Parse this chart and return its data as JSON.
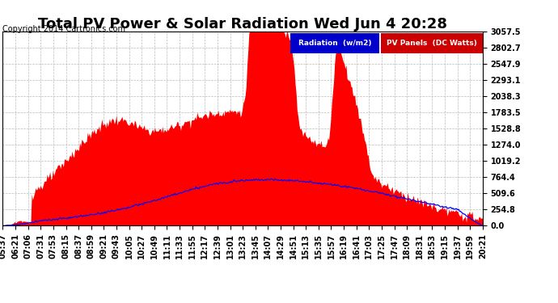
{
  "title": "Total PV Power & Solar Radiation Wed Jun 4 20:28",
  "copyright": "Copyright 2014 Cartronics.com",
  "legend_radiation": "Radiation  (w/m2)",
  "legend_pv": "PV Panels  (DC Watts)",
  "legend_radiation_bg": "#0000cc",
  "legend_pv_bg": "#cc0000",
  "legend_text_color": "#ffffff",
  "y_ticks": [
    0.0,
    254.8,
    509.6,
    764.4,
    1019.2,
    1274.0,
    1528.8,
    1783.5,
    2038.3,
    2293.1,
    2547.9,
    2802.7,
    3057.5
  ],
  "ymax": 3057.5,
  "ymin": 0.0,
  "bg_color": "#ffffff",
  "plot_bg_color": "#ffffff",
  "grid_color": "#bbbbbb",
  "pv_fill_color": "#ff0000",
  "radiation_line_color": "#0000ff",
  "title_fontsize": 13,
  "copyright_fontsize": 7,
  "tick_fontsize": 7,
  "x_tick_rotation": 90,
  "x_tick_labels": [
    "05:37",
    "06:21",
    "07:06",
    "07:31",
    "07:53",
    "08:15",
    "08:37",
    "08:59",
    "09:21",
    "09:43",
    "10:05",
    "10:27",
    "10:49",
    "11:11",
    "11:33",
    "11:55",
    "12:17",
    "12:39",
    "13:01",
    "13:23",
    "13:45",
    "14:07",
    "14:29",
    "14:51",
    "15:13",
    "15:35",
    "15:57",
    "16:19",
    "16:41",
    "17:03",
    "17:25",
    "17:47",
    "18:09",
    "18:31",
    "18:53",
    "19:15",
    "19:37",
    "19:59",
    "20:21"
  ]
}
